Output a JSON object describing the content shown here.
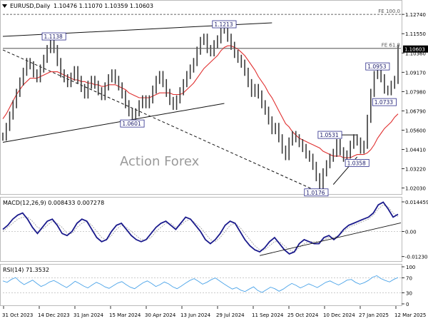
{
  "header": {
    "symbol_label": "EURUSD,Daily",
    "ohlc_label": "1.10476 1.11070 1.10359 1.10603"
  },
  "watermark": "Action Forex",
  "colors": {
    "price": "#3a3a3a",
    "ma": "#e03030",
    "trend": "#111111",
    "macd": "#1a1a8c",
    "signal": "#9a9a9a",
    "rsi": "#4aa3e8",
    "label_border": "#2a2a8a",
    "label_text": "#1a1a6a",
    "grid": "#d8d8d8",
    "last_box": "#000000"
  },
  "chart_data": [
    {
      "type": "line",
      "name": "EURUSD Daily price",
      "x_ticks": [
        "31 Oct 2023",
        "14 Dec 2023",
        "31 Jan 2024",
        "15 Mar 2024",
        "30 Apr 2024",
        "13 Jun 2024",
        "29 Jul 2024",
        "11 Sep 2024",
        "25 Oct 2024",
        "10 Dec 2024",
        "27 Jan 2025",
        "12 Mar 2025"
      ],
      "y_ticks": [
        1.1274,
        1.1155,
        1.1036,
        1.0917,
        1.0798,
        1.0679,
        1.056,
        1.0441,
        1.0322,
        1.0203
      ],
      "y_tick_labels": [
        "1.12740",
        "1.11550",
        "1.10360",
        "1.09170",
        "1.07980",
        "1.06790",
        "1.05600",
        "1.04410",
        "1.03220",
        "1.02030"
      ],
      "ylim": [
        1.0175,
        1.1345
      ],
      "last_price": 1.10603,
      "last_price_label": "1.10603",
      "close_series": [
        1.052,
        1.058,
        1.065,
        1.072,
        1.079,
        1.086,
        1.092,
        1.098,
        1.096,
        1.091,
        1.088,
        1.094,
        1.1,
        1.106,
        1.111,
        1.106,
        1.098,
        1.091,
        1.088,
        1.085,
        1.089,
        1.093,
        1.087,
        1.082,
        1.078,
        1.084,
        1.087,
        1.084,
        1.08,
        1.077,
        1.083,
        1.088,
        1.091,
        1.087,
        1.083,
        1.078,
        1.072,
        1.067,
        1.063,
        1.067,
        1.072,
        1.075,
        1.072,
        1.075,
        1.081,
        1.087,
        1.09,
        1.085,
        1.079,
        1.074,
        1.071,
        1.075,
        1.08,
        1.085,
        1.09,
        1.094,
        1.098,
        1.105,
        1.111,
        1.113,
        1.106,
        1.104,
        1.109,
        1.112,
        1.118,
        1.12,
        1.113,
        1.108,
        1.103,
        1.1,
        1.097,
        1.092,
        1.085,
        1.079,
        1.082,
        1.078,
        1.072,
        1.068,
        1.062,
        1.056,
        1.058,
        1.051,
        1.044,
        1.04,
        1.049,
        1.053,
        1.051,
        1.048,
        1.045,
        1.041,
        1.039,
        1.034,
        1.027,
        1.021,
        1.03,
        1.035,
        1.039,
        1.042,
        1.048,
        1.043,
        1.039,
        1.041,
        1.047,
        1.051,
        1.049,
        1.044,
        1.047,
        1.063,
        1.079,
        1.09,
        1.095,
        1.088,
        1.081,
        1.08,
        1.084,
        1.087,
        1.106
      ],
      "ma_series": [
        1.063,
        1.066,
        1.07,
        1.074,
        1.078,
        1.081,
        1.084,
        1.086,
        1.088,
        1.088,
        1.088,
        1.089,
        1.09,
        1.091,
        1.092,
        1.092,
        1.092,
        1.091,
        1.09,
        1.089,
        1.088,
        1.087,
        1.087,
        1.086,
        1.086,
        1.085,
        1.085,
        1.084,
        1.084,
        1.083,
        1.083,
        1.084,
        1.084,
        1.084,
        1.083,
        1.082,
        1.081,
        1.079,
        1.078,
        1.077,
        1.076,
        1.076,
        1.076,
        1.076,
        1.077,
        1.078,
        1.079,
        1.079,
        1.079,
        1.079,
        1.078,
        1.078,
        1.078,
        1.079,
        1.081,
        1.083,
        1.085,
        1.088,
        1.091,
        1.094,
        1.096,
        1.098,
        1.1,
        1.102,
        1.105,
        1.107,
        1.108,
        1.108,
        1.107,
        1.106,
        1.104,
        1.102,
        1.099,
        1.096,
        1.093,
        1.089,
        1.086,
        1.083,
        1.079,
        1.076,
        1.072,
        1.068,
        1.064,
        1.06,
        1.058,
        1.055,
        1.053,
        1.051,
        1.05,
        1.049,
        1.048,
        1.047,
        1.046,
        1.045,
        1.043,
        1.042,
        1.041,
        1.04,
        1.04,
        1.04,
        1.039,
        1.039,
        1.039,
        1.04,
        1.041,
        1.041,
        1.041,
        1.042,
        1.044,
        1.047,
        1.051,
        1.054,
        1.057,
        1.059,
        1.061,
        1.064,
        1.066
      ],
      "annotations": [
        {
          "label": "1.1138",
          "value": 1.1138,
          "index": 15
        },
        {
          "label": "1.0601",
          "value": 1.0601,
          "index": 38
        },
        {
          "label": "1.1213",
          "value": 1.1213,
          "index": 65
        },
        {
          "label": "1.0531",
          "value": 1.0531,
          "index": 96
        },
        {
          "label": "1.0358",
          "value": 1.0358,
          "index": 104
        },
        {
          "label": "1.0176",
          "value": 1.0176,
          "index": 92
        },
        {
          "label": "1.0953",
          "value": 1.0953,
          "index": 110
        },
        {
          "label": "1.0733",
          "value": 1.0733,
          "index": 112
        }
      ],
      "fib_levels": [
        {
          "label": "FE 100.0",
          "value": 1.1274
        },
        {
          "label": "FE 61.8",
          "value": 1.1066
        }
      ]
    },
    {
      "type": "line",
      "name": "MACD",
      "indicator_label": "MACD(12,26,9) 0.008433 0.007278",
      "y_tick_labels": [
        "0.014459",
        "0.00",
        "-0.012303"
      ],
      "ylim": [
        -0.0138,
        0.0155
      ],
      "macd_series": [
        0.001,
        0.003,
        0.006,
        0.008,
        0.009,
        0.006,
        0.002,
        -0.001,
        0.002,
        0.005,
        0.006,
        0.003,
        -0.001,
        -0.002,
        0.0,
        0.004,
        0.006,
        0.005,
        0.001,
        -0.003,
        -0.005,
        -0.004,
        0.0,
        0.003,
        0.004,
        0.001,
        -0.002,
        -0.004,
        -0.005,
        -0.004,
        -0.001,
        0.002,
        0.004,
        0.005,
        0.003,
        0.001,
        0.004,
        0.007,
        0.006,
        0.003,
        0.0,
        -0.004,
        -0.006,
        -0.004,
        -0.001,
        0.003,
        0.005,
        0.004,
        0.0,
        -0.004,
        -0.007,
        -0.009,
        -0.01,
        -0.008,
        -0.005,
        -0.003,
        -0.006,
        -0.009,
        -0.011,
        -0.01,
        -0.006,
        -0.004,
        -0.005,
        -0.006,
        -0.006,
        -0.003,
        -0.002,
        -0.004,
        -0.002,
        0.001,
        0.003,
        0.004,
        0.005,
        0.006,
        0.007,
        0.009,
        0.013,
        0.0143,
        0.011,
        0.007,
        0.0084
      ],
      "signal_series": [
        0.0,
        0.002,
        0.004,
        0.006,
        0.007,
        0.007,
        0.005,
        0.002,
        0.001,
        0.003,
        0.005,
        0.004,
        0.002,
        -0.001,
        -0.001,
        0.002,
        0.004,
        0.005,
        0.003,
        0.0,
        -0.003,
        -0.004,
        -0.002,
        0.001,
        0.003,
        0.002,
        0.0,
        -0.002,
        -0.004,
        -0.004,
        -0.003,
        0.0,
        0.002,
        0.004,
        0.004,
        0.002,
        0.003,
        0.005,
        0.006,
        0.004,
        0.002,
        -0.001,
        -0.004,
        -0.005,
        -0.003,
        0.0,
        0.003,
        0.004,
        0.002,
        -0.001,
        -0.004,
        -0.007,
        -0.009,
        -0.009,
        -0.007,
        -0.005,
        -0.005,
        -0.007,
        -0.009,
        -0.01,
        -0.008,
        -0.006,
        -0.005,
        -0.005,
        -0.005,
        -0.004,
        -0.003,
        -0.003,
        -0.002,
        0.0,
        0.002,
        0.003,
        0.004,
        0.005,
        0.006,
        0.008,
        0.011,
        0.013,
        0.012,
        0.009,
        0.0073
      ]
    },
    {
      "type": "line",
      "name": "RSI",
      "indicator_label": "RSI(14) 71.3532",
      "y_tick_labels": [
        "100",
        "70",
        "30",
        "0"
      ],
      "ylim": [
        0,
        100
      ],
      "levels": [
        70,
        30
      ],
      "rsi_series": [
        62,
        58,
        66,
        71,
        60,
        52,
        58,
        64,
        55,
        47,
        52,
        59,
        63,
        57,
        50,
        44,
        52,
        61,
        55,
        48,
        43,
        51,
        58,
        53,
        46,
        42,
        49,
        56,
        60,
        52,
        45,
        41,
        49,
        57,
        62,
        55,
        47,
        52,
        59,
        54,
        46,
        41,
        48,
        56,
        63,
        68,
        61,
        53,
        58,
        65,
        70,
        62,
        54,
        47,
        40,
        44,
        37,
        33,
        40,
        46,
        36,
        31,
        38,
        45,
        41,
        34,
        40,
        48,
        55,
        50,
        43,
        48,
        54,
        49,
        44,
        51,
        58,
        62,
        56,
        51,
        57,
        64,
        66,
        58,
        53,
        57,
        63,
        72,
        76,
        68,
        63,
        59,
        66,
        71
      ]
    }
  ]
}
